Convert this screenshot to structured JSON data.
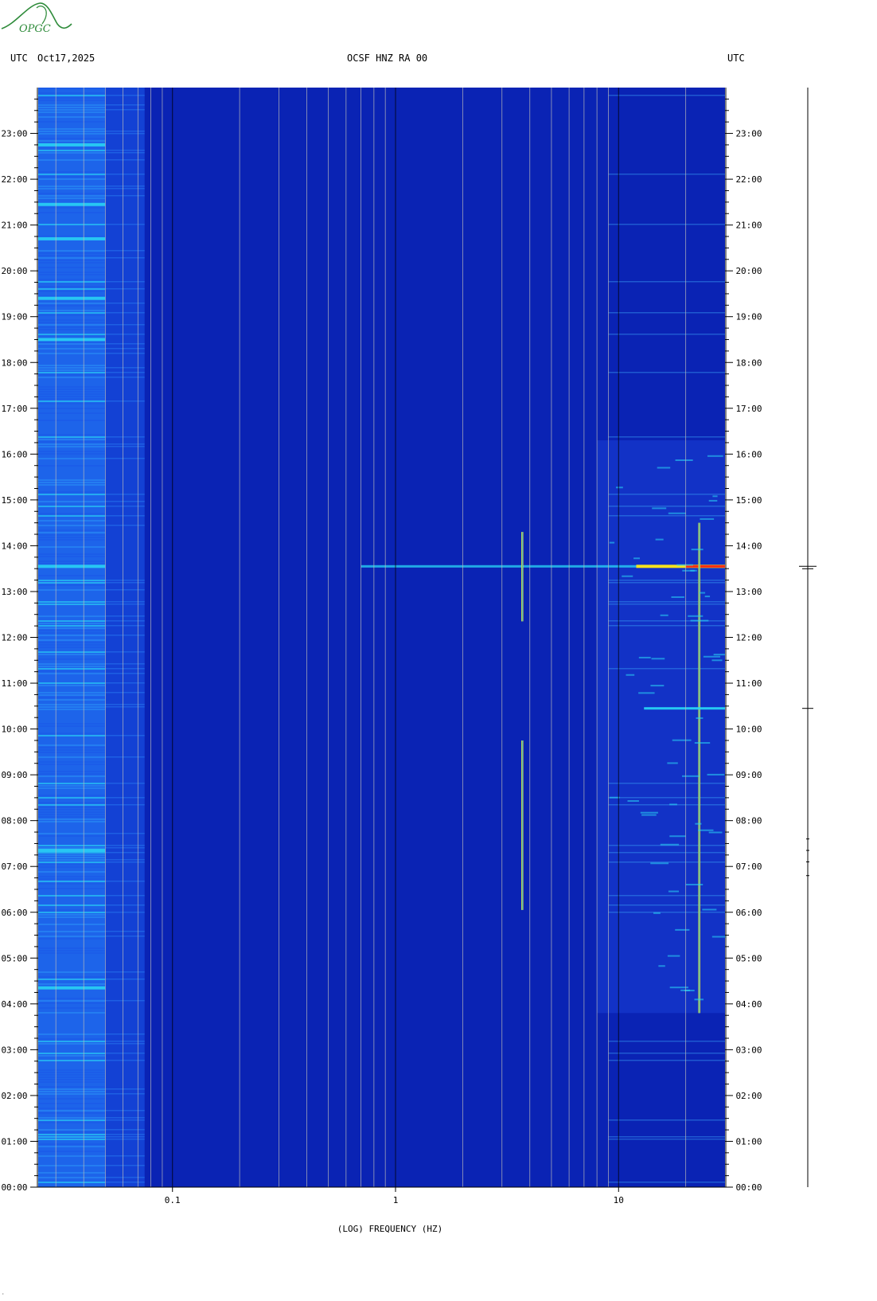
{
  "header": {
    "left_tz": "UTC",
    "date": "Oct17,2025",
    "station": "OCSF HNZ RA 00",
    "right_tz": "UTC"
  },
  "logo": {
    "text": "OPGC"
  },
  "chart_data": {
    "type": "heatmap",
    "xlabel": "(LOG) FREQUENCY (HZ)",
    "x_scale": "log",
    "xlim": [
      0.025,
      30
    ],
    "x_ticks": [
      0.1,
      1,
      10
    ],
    "x_tick_labels": [
      "0.1",
      "1",
      "10"
    ],
    "ylabel_left": "UTC",
    "ylabel_right": "UTC",
    "ylim": [
      0,
      24
    ],
    "y_ticks": [
      0,
      1,
      2,
      3,
      4,
      5,
      6,
      7,
      8,
      9,
      10,
      11,
      12,
      13,
      14,
      15,
      16,
      17,
      18,
      19,
      20,
      21,
      22,
      23
    ],
    "y_tick_labels": [
      "00:00",
      "01:00",
      "02:00",
      "03:00",
      "04:00",
      "05:00",
      "06:00",
      "07:00",
      "08:00",
      "09:00",
      "10:00",
      "11:00",
      "12:00",
      "13:00",
      "14:00",
      "15:00",
      "16:00",
      "17:00",
      "18:00",
      "19:00",
      "20:00",
      "21:00",
      "22:00",
      "23:00"
    ],
    "colors": {
      "background": "#0a23b4",
      "low_freq_band": "#1f6cf0",
      "bright": "#29d8f5",
      "event": "#f5e21e",
      "peak": "#ff2a10"
    },
    "features": [
      {
        "label": "event",
        "time": 13.55,
        "f_range": [
          0.7,
          30
        ]
      },
      {
        "label": "narrowband",
        "freq": 3.7,
        "t_range": [
          12.35,
          14.3
        ]
      },
      {
        "label": "narrowband",
        "freq": 3.7,
        "t_range": [
          6.05,
          9.75
        ]
      },
      {
        "label": "narrowband",
        "freq": 23,
        "t_range": [
          3.8,
          14.5
        ]
      }
    ],
    "seismogram_ticks": [
      13.55,
      10.45,
      7.6,
      7.35,
      7.1,
      6.8
    ]
  }
}
